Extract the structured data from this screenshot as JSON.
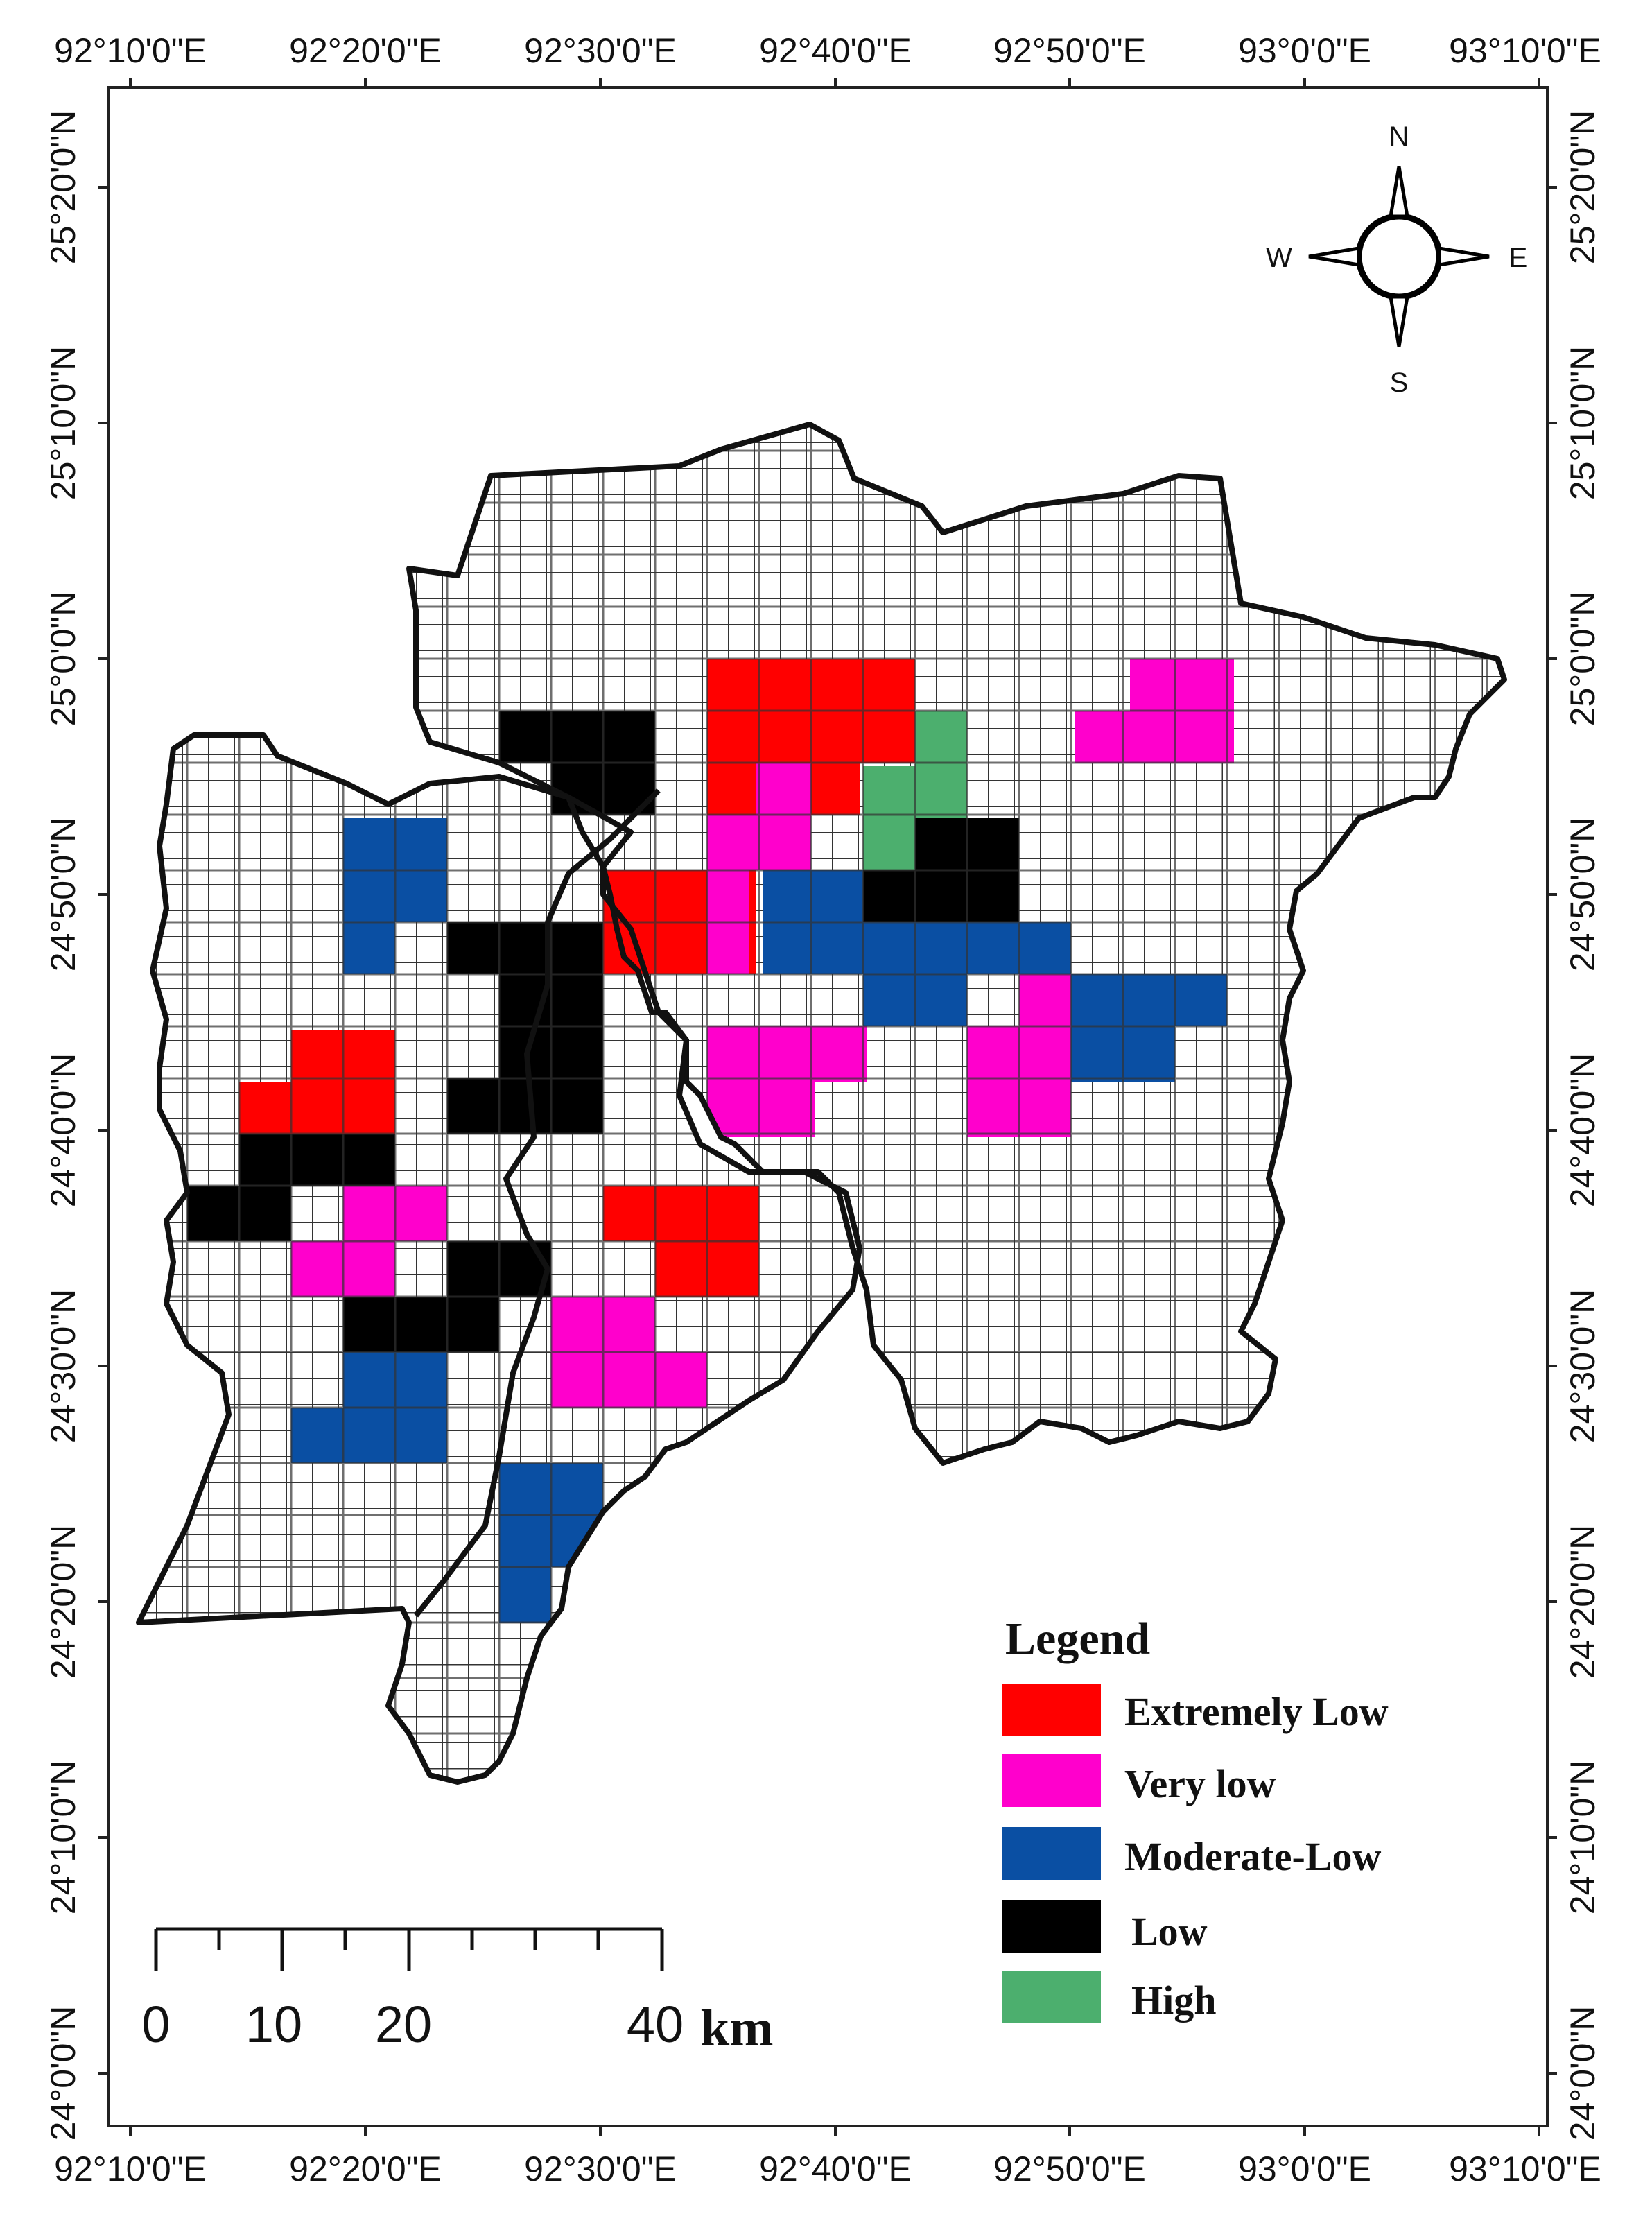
{
  "top_longitudes": [
    "92°10'0\"E",
    "92°20'0\"E",
    "92°30'0\"E",
    "92°40'0\"E",
    "92°50'0\"E",
    "93°0'0\"E",
    "93°10'0\"E"
  ],
  "bottom_longitudes": [
    "92°10'0\"E",
    "92°20'0\"E",
    "92°30'0\"E",
    "92°40'0\"E",
    "92°50'0\"E",
    "93°0'0\"E",
    "93°10'0\"E"
  ],
  "left_latitudes": [
    "25°20'0\"N",
    "25°10'0\"N",
    "25°0'0\"N",
    "24°50'0\"N",
    "24°40'0\"N",
    "24°30'0\"N",
    "24°20'0\"N",
    "24°10'0\"N",
    "24°0'0\"N"
  ],
  "right_latitudes": [
    "25°20'0\"N",
    "25°10'0\"N",
    "25°0'0\"N",
    "24°50'0\"N",
    "24°40'0\"N",
    "24°30'0\"N",
    "24°20'0\"N",
    "24°10'0\"N",
    "24°0'0\"N"
  ],
  "compass": {
    "n": "N",
    "s": "S",
    "e": "E",
    "w": "W"
  },
  "legend": {
    "title": "Legend",
    "items": [
      {
        "label": "Extremely Low",
        "color": "#ff0000",
        "class": "red"
      },
      {
        "label": "Very low",
        "color": "#ff00cc",
        "class": "pink"
      },
      {
        "label": "Moderate-Low",
        "color": "#0a4fa3",
        "class": "blue"
      },
      {
        "label": "Low",
        "color": "#000000",
        "class": "black"
      },
      {
        "label": "High",
        "color": "#4caf6e",
        "class": "green"
      }
    ]
  },
  "scale_bar": {
    "labels": [
      "0",
      "10",
      "20",
      "40"
    ],
    "unit": "km"
  }
}
